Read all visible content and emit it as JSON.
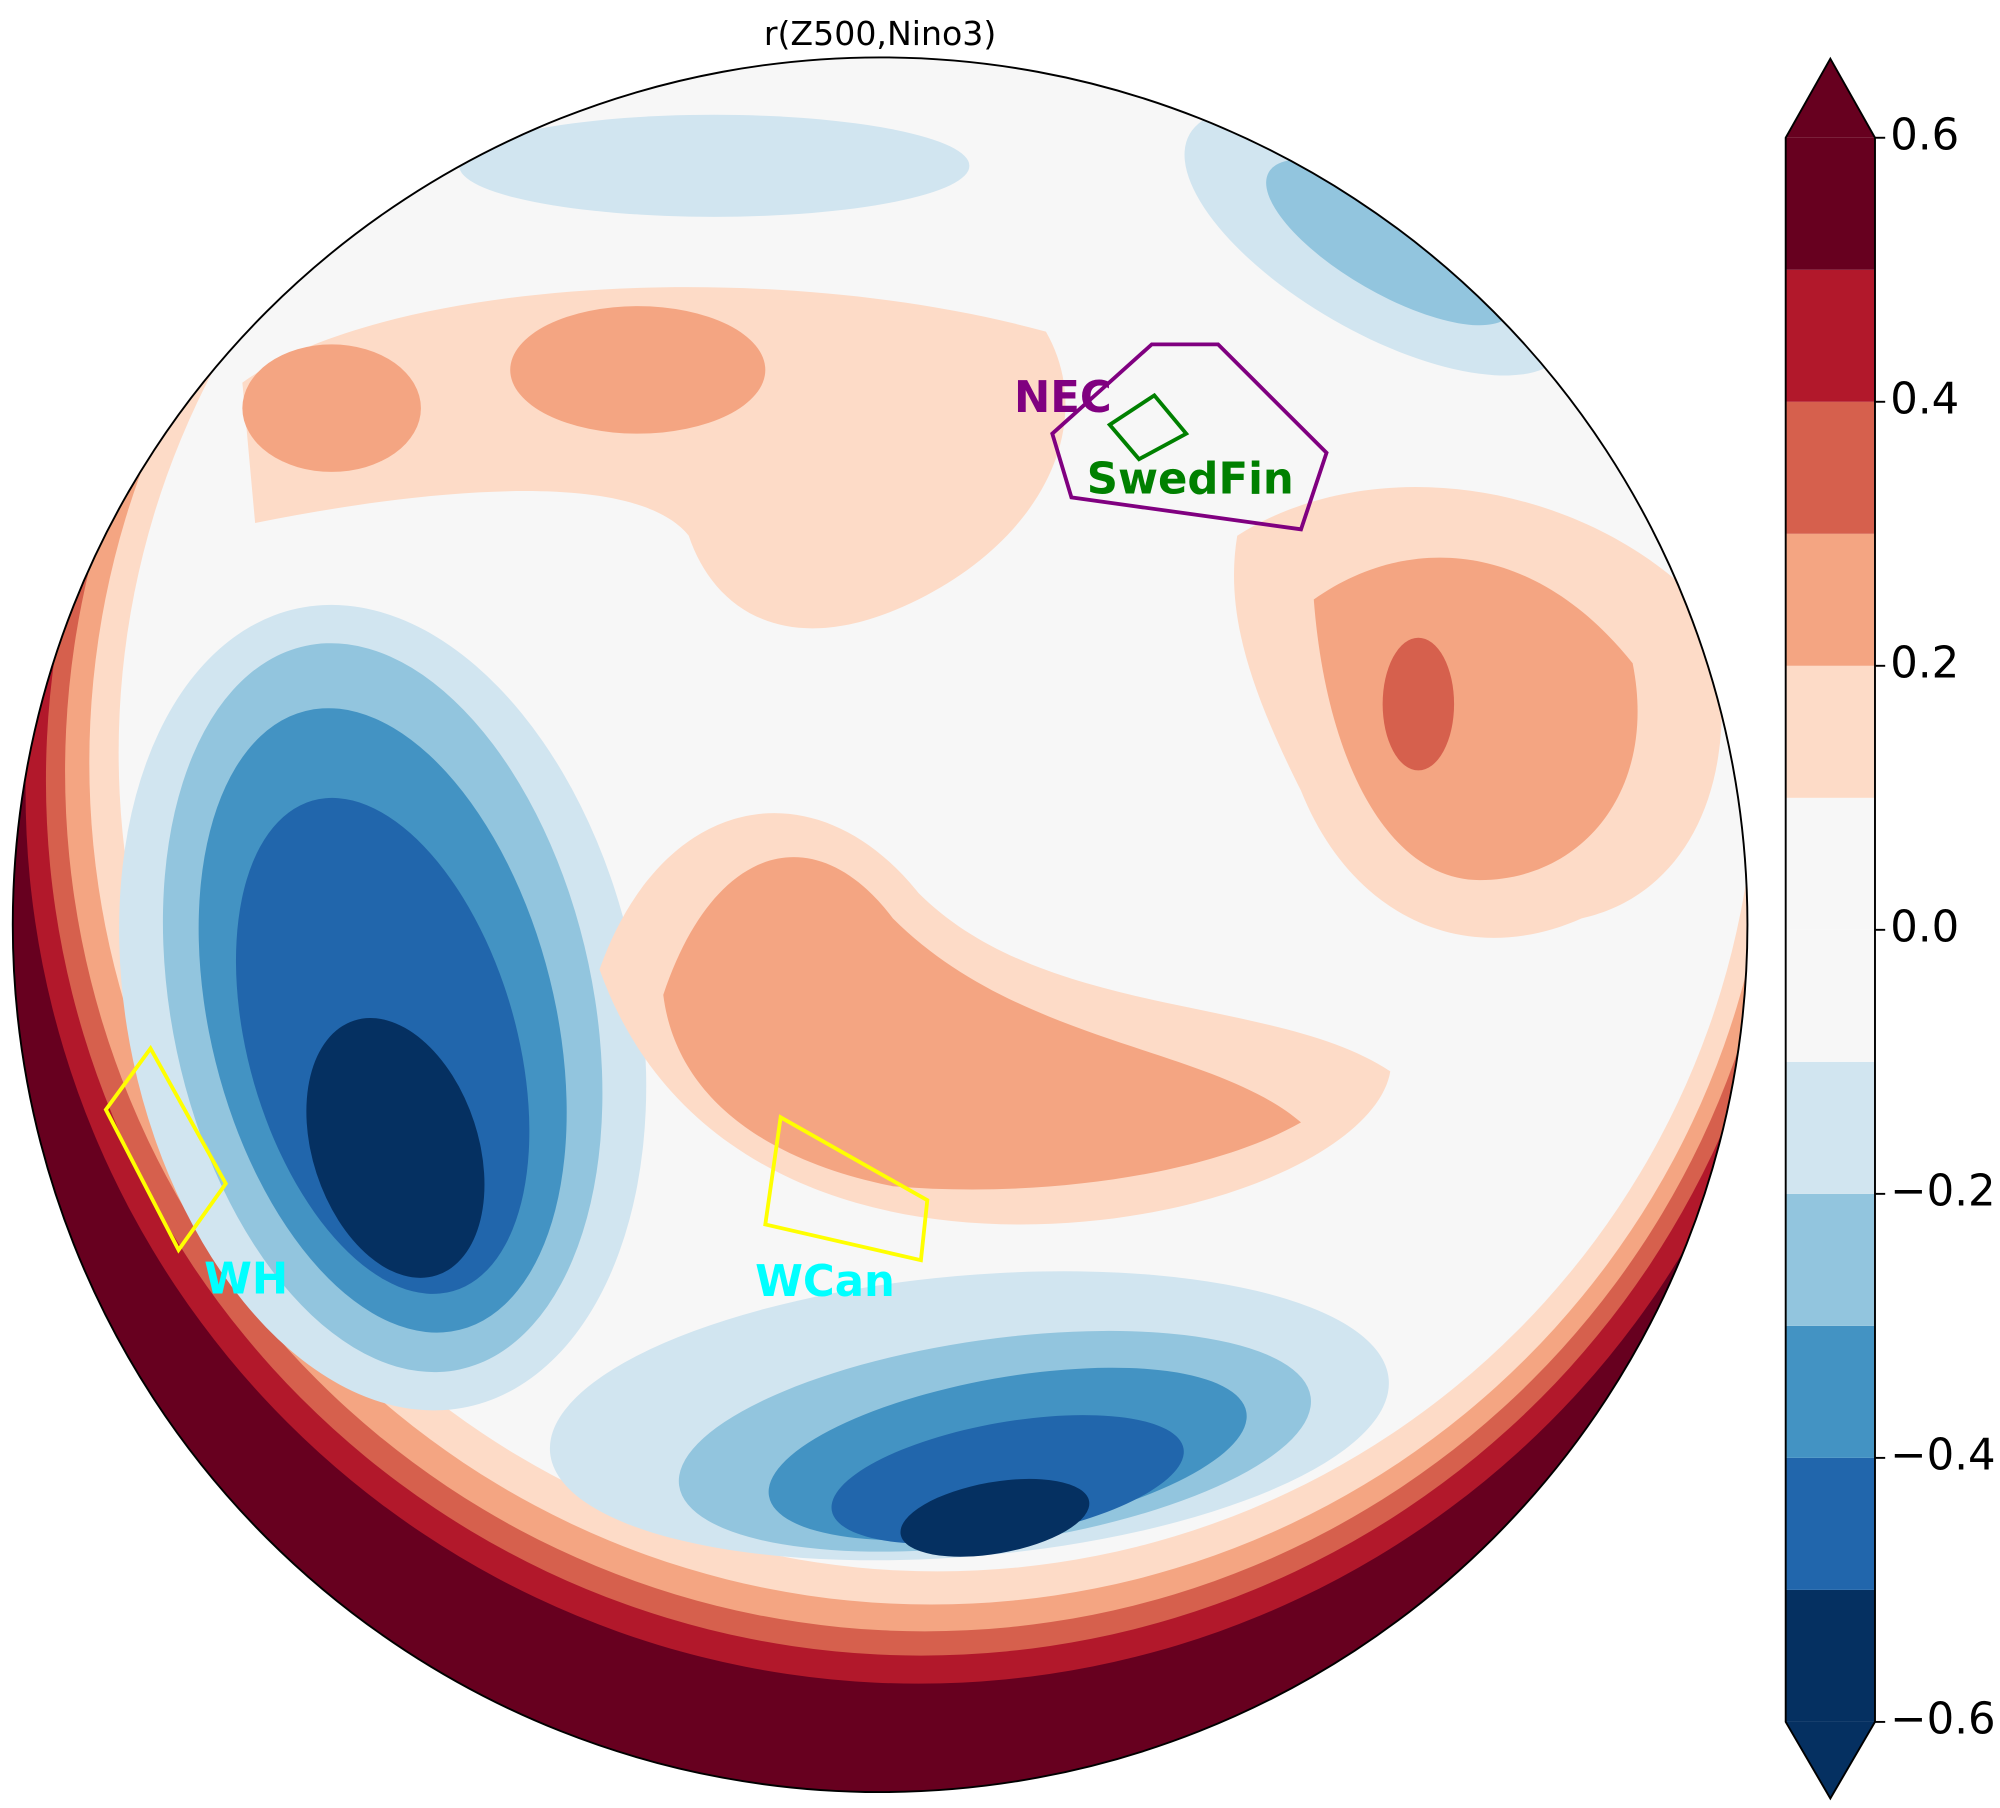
{
  "chart_data": {
    "type": "contour-map",
    "title": "r(Z500,Nino3)",
    "colorbar": {
      "levels": [
        -0.6,
        -0.5,
        -0.4,
        -0.3,
        -0.2,
        -0.1,
        0,
        0.1,
        0.2,
        0.3,
        0.4,
        0.5,
        0.6
      ],
      "colors": [
        "#053061",
        "#2166ac",
        "#4393c3",
        "#92c5de",
        "#d1e5f0",
        "#f7f7f7",
        "#f7f7f7",
        "#fddbc7",
        "#f4a582",
        "#d6604d",
        "#b2182b",
        "#67001f"
      ],
      "extend_colors": [
        "#053061",
        "#67001f"
      ],
      "ticks": [
        0.6,
        0.4,
        0.2,
        {
          "value": 0,
          "label": "0.0"
        },
        {
          "value": -0.2,
          "label": "−0.2"
        },
        {
          "value": -0.4,
          "label": "−0.4"
        },
        {
          "value": -0.6,
          "label": "−0.6"
        }
      ]
    },
    "regions": [
      {
        "label": "NEC",
        "color": "#800080",
        "outline": "#800080"
      },
      {
        "label": "SwedFin",
        "color": "#008000",
        "outline": "#008000"
      },
      {
        "label": "WH",
        "color": "#00ffff",
        "outline": "#ffff00"
      },
      {
        "label": "WCan",
        "color": "#00ffff",
        "outline": "#ffff00"
      }
    ]
  }
}
